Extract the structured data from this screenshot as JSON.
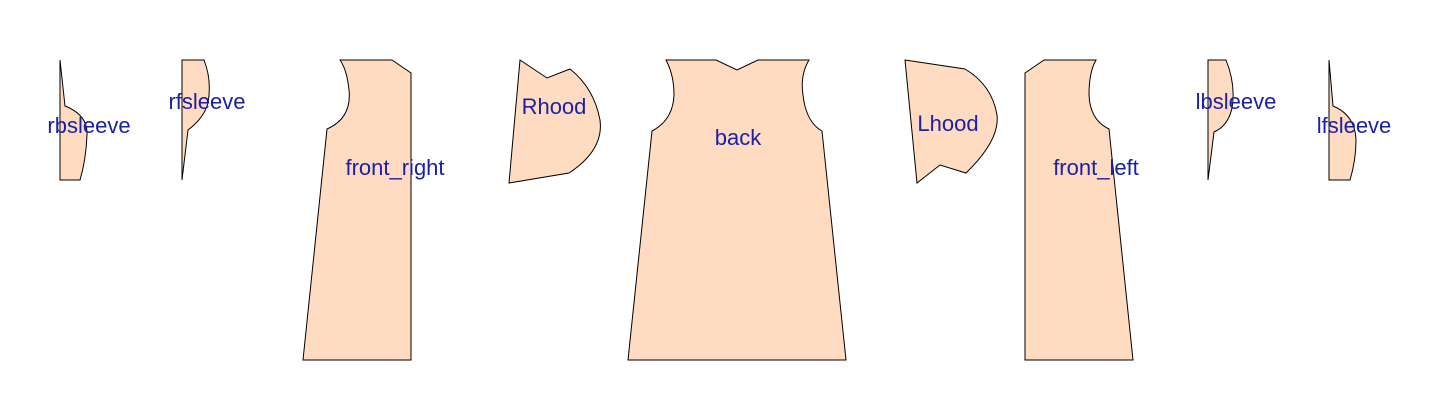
{
  "pattern": {
    "fill_color": "#FFDBC1",
    "stroke_color": "#000000",
    "label_color": "#1A21A8",
    "pieces": [
      {
        "id": "rbsleeve",
        "label": "rbsleeve"
      },
      {
        "id": "rfsleeve",
        "label": "rfsleeve"
      },
      {
        "id": "front-right",
        "label": "front_right"
      },
      {
        "id": "rhood",
        "label": "Rhood"
      },
      {
        "id": "back",
        "label": "back"
      },
      {
        "id": "lhood",
        "label": "Lhood"
      },
      {
        "id": "front-left",
        "label": "front_left"
      },
      {
        "id": "lbsleeve",
        "label": "lbsleeve"
      },
      {
        "id": "lfsleeve",
        "label": "lfsleeve"
      }
    ]
  }
}
